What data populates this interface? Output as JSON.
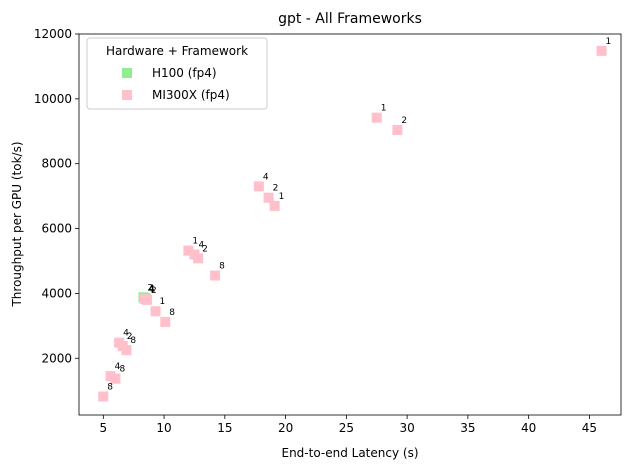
{
  "chart_data": {
    "type": "scatter",
    "title": "gpt - All Frameworks",
    "xlabel": "End-to-end Latency (s)",
    "ylabel": "Throughput per GPU (tok/s)",
    "xlim": [
      3.0,
      47.6
    ],
    "ylim": [
      250,
      12000
    ],
    "xticks": [
      5,
      10,
      15,
      20,
      25,
      30,
      35,
      40,
      45
    ],
    "yticks": [
      2000,
      4000,
      6000,
      8000,
      10000,
      12000
    ],
    "grid": false,
    "legend": {
      "title": "Hardware + Framework",
      "position": "top-left"
    },
    "series": [
      {
        "name": "H100 (fp4)",
        "color": "#90ee90",
        "marker": "square",
        "points": [
          {
            "x": 8.3,
            "y": 3880,
            "label": "2"
          },
          {
            "x": 8.4,
            "y": 3860,
            "label": "4"
          },
          {
            "x": 8.5,
            "y": 3840,
            "label": "1"
          }
        ]
      },
      {
        "name": "MI300X (fp4)",
        "color": "#ffc0cb",
        "marker": "square",
        "points": [
          {
            "x": 46.0,
            "y": 11480,
            "label": "1"
          },
          {
            "x": 27.5,
            "y": 9420,
            "label": "1"
          },
          {
            "x": 29.2,
            "y": 9040,
            "label": "2"
          },
          {
            "x": 17.8,
            "y": 7300,
            "label": "4"
          },
          {
            "x": 18.6,
            "y": 6950,
            "label": "2"
          },
          {
            "x": 19.1,
            "y": 6700,
            "label": "1"
          },
          {
            "x": 12.0,
            "y": 5320,
            "label": "1"
          },
          {
            "x": 12.5,
            "y": 5200,
            "label": "4"
          },
          {
            "x": 12.8,
            "y": 5080,
            "label": "2"
          },
          {
            "x": 14.2,
            "y": 4550,
            "label": "8"
          },
          {
            "x": 8.4,
            "y": 3830,
            "label": "4"
          },
          {
            "x": 8.6,
            "y": 3800,
            "label": "2"
          },
          {
            "x": 9.3,
            "y": 3450,
            "label": "1"
          },
          {
            "x": 10.1,
            "y": 3120,
            "label": "8"
          },
          {
            "x": 6.3,
            "y": 2480,
            "label": "4"
          },
          {
            "x": 6.6,
            "y": 2380,
            "label": "2"
          },
          {
            "x": 6.9,
            "y": 2250,
            "label": "8"
          },
          {
            "x": 5.6,
            "y": 1450,
            "label": "4"
          },
          {
            "x": 6.0,
            "y": 1370,
            "label": "8"
          },
          {
            "x": 5.0,
            "y": 820,
            "label": "8"
          }
        ]
      }
    ]
  }
}
